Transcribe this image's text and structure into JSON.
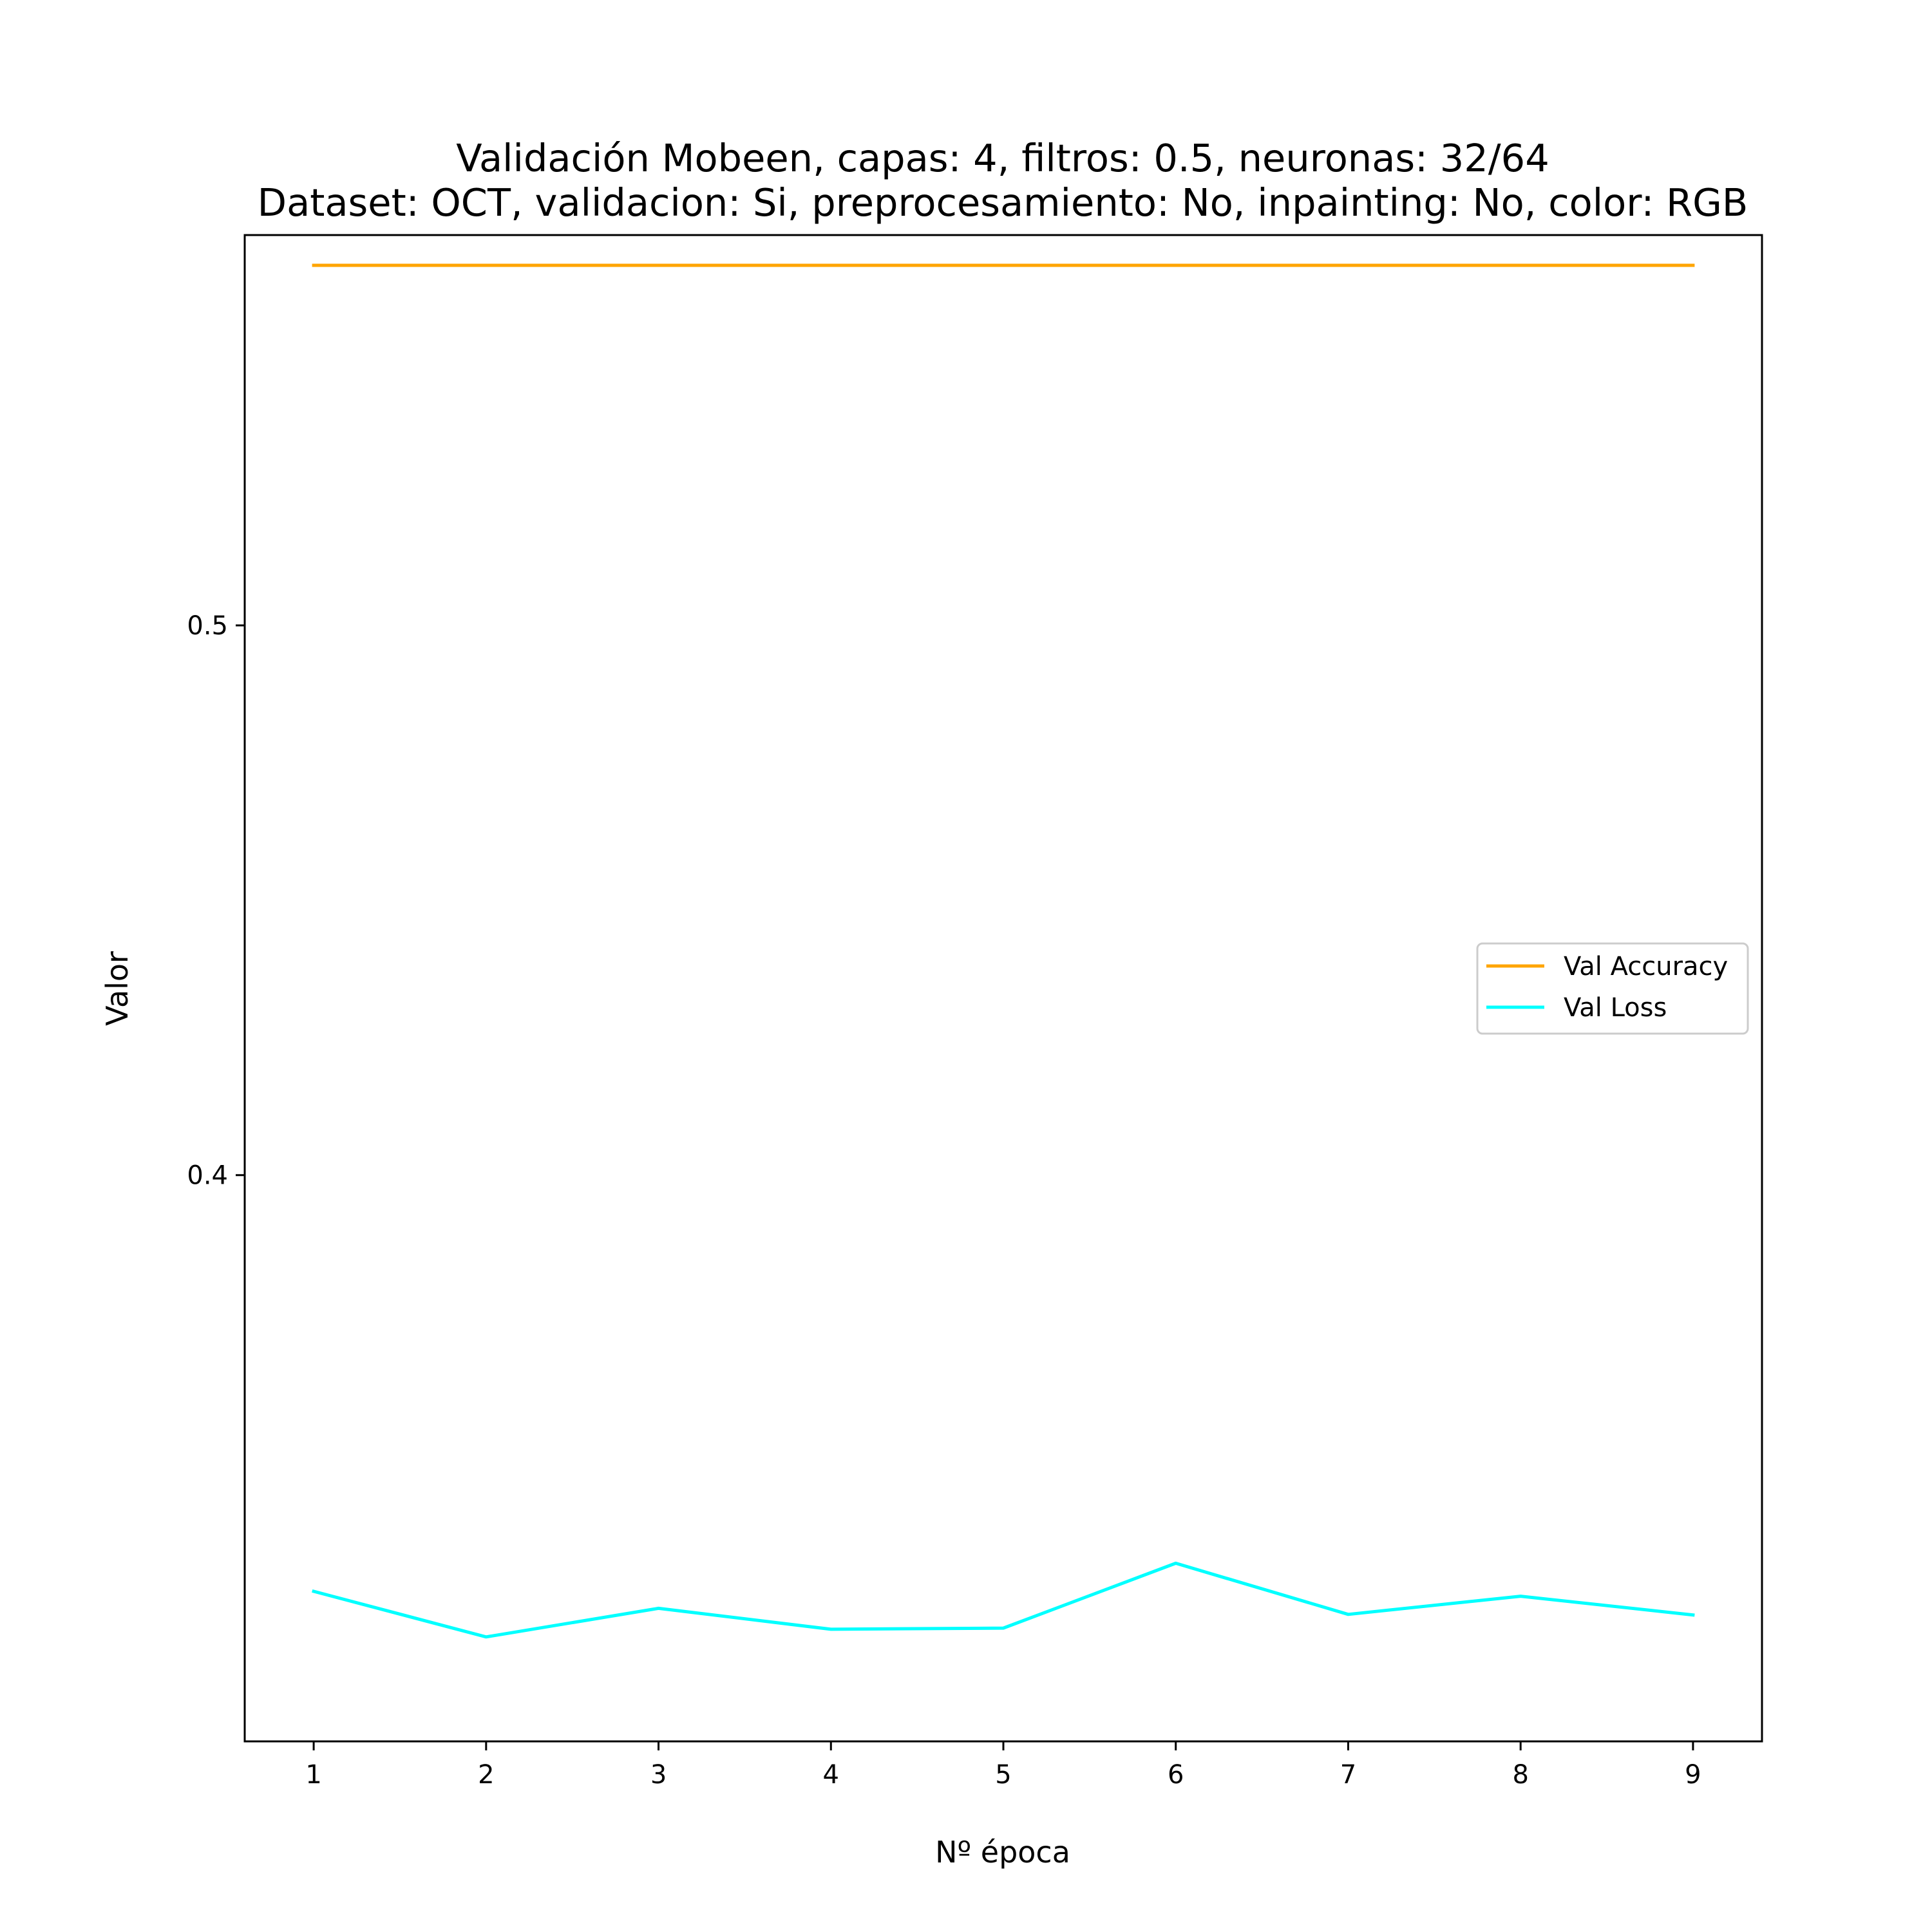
{
  "chart_data": {
    "type": "line",
    "title": "Validación Mobeen, capas: 4, filtros: 0.5, neuronas: 32/64",
    "subtitle": "Dataset: OCT, validacion: Si, preprocesamiento: No, inpainting: No, color: RGB",
    "xlabel": "Nº época",
    "ylabel": "Valor",
    "x": [
      1,
      2,
      3,
      4,
      5,
      6,
      7,
      8,
      9
    ],
    "xlim": [
      0.6,
      9.4
    ],
    "ylim": [
      0.297,
      0.571
    ],
    "yticks": [
      0.4,
      0.5
    ],
    "ytick_labels": [
      "0.4",
      "0.5"
    ],
    "series": [
      {
        "name": "Val Accuracy",
        "color": "#ffa500",
        "values": [
          0.5655,
          0.5655,
          0.5655,
          0.5655,
          0.5655,
          0.5655,
          0.5655,
          0.5655,
          0.5655
        ]
      },
      {
        "name": "Val Loss",
        "color": "#00ffff",
        "values": [
          0.3243,
          0.316,
          0.3212,
          0.3174,
          0.3176,
          0.3294,
          0.3201,
          0.3234,
          0.32
        ]
      }
    ],
    "grid": false,
    "legend": "center-right"
  }
}
